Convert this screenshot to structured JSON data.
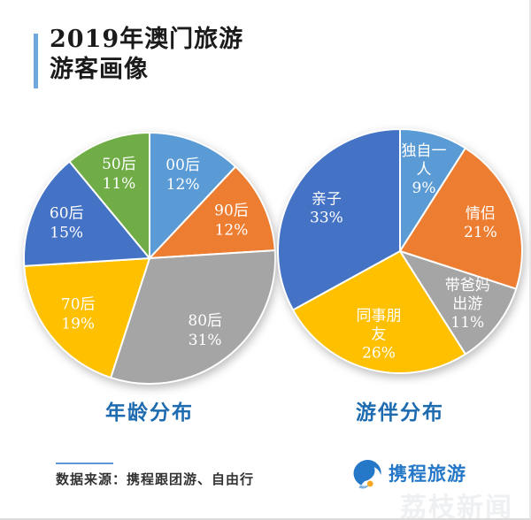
{
  "page": {
    "title_line1": "2019年澳门旅游",
    "title_line2": "游客画像"
  },
  "chart_data": [
    {
      "type": "pie",
      "title": "年龄分布",
      "start_angle_deg": 0,
      "direction": "clockwise",
      "slices": [
        {
          "label": "00后",
          "label_lines": [
            "00后"
          ],
          "value": 12,
          "pct": "12%",
          "color": "#5B9BD5"
        },
        {
          "label": "90后",
          "label_lines": [
            "90后"
          ],
          "value": 12,
          "pct": "12%",
          "color": "#ED7D31"
        },
        {
          "label": "80后",
          "label_lines": [
            "80后"
          ],
          "value": 31,
          "pct": "31%",
          "color": "#A5A5A5"
        },
        {
          "label": "70后",
          "label_lines": [
            "70后"
          ],
          "value": 19,
          "pct": "19%",
          "color": "#FFC000"
        },
        {
          "label": "60后",
          "label_lines": [
            "60后"
          ],
          "value": 15,
          "pct": "15%",
          "color": "#4472C4"
        },
        {
          "label": "50后",
          "label_lines": [
            "50后"
          ],
          "value": 11,
          "pct": "11%",
          "color": "#70AD47"
        }
      ]
    },
    {
      "type": "pie",
      "title": "游伴分布",
      "start_angle_deg": 0,
      "direction": "clockwise",
      "slices": [
        {
          "label": "独自一人",
          "label_lines": [
            "独自一",
            "人"
          ],
          "value": 9,
          "pct": "9%",
          "color": "#5B9BD5"
        },
        {
          "label": "情侣",
          "label_lines": [
            "情侣"
          ],
          "value": 21,
          "pct": "21%",
          "color": "#ED7D31"
        },
        {
          "label": "带爸妈出游",
          "label_lines": [
            "带爸妈",
            "出游"
          ],
          "value": 11,
          "pct": "11%",
          "color": "#A5A5A5"
        },
        {
          "label": "同事朋友",
          "label_lines": [
            "同事朋",
            "友"
          ],
          "value": 26,
          "pct": "26%",
          "color": "#FFC000"
        },
        {
          "label": "亲子",
          "label_lines": [
            "亲子"
          ],
          "value": 33,
          "pct": "33%",
          "color": "#4472C4"
        }
      ]
    }
  ],
  "footer": {
    "source": "数据来源：携程跟团游、自由行",
    "logo_text": "携程旅游",
    "watermark": "荔枝新闻"
  },
  "colors": {
    "accent_bar": "#6FA8DC",
    "caption_blue": "#1E6BB0",
    "source_line": "#5B9BD5",
    "logo_blue": "#2577C8",
    "logo_orange": "#F5A623",
    "label_text": "#FFFFFF"
  }
}
